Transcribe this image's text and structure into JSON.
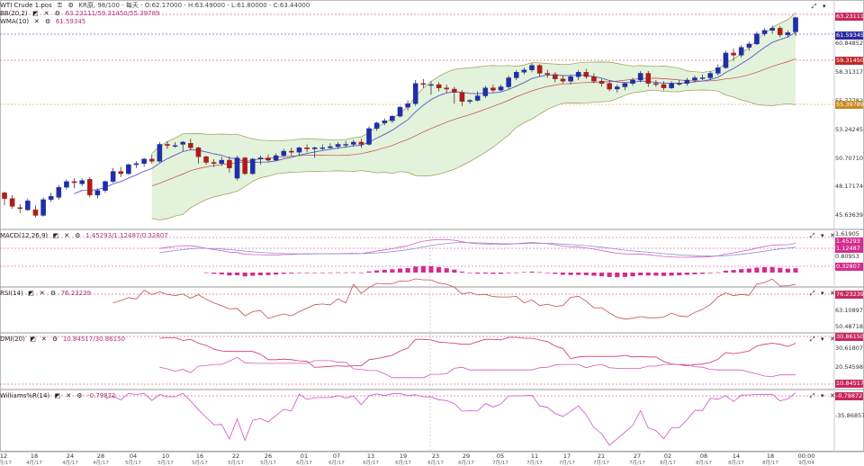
{
  "app": {
    "title": "WTI Crude 1.pos"
  },
  "header": {
    "main_info": "KR原, 98/100 - 每天 - O:62.17000 - H:63.49000 - L:61.80000 - C:63.44000",
    "bb_label": "BB(20,2)",
    "bb_values": "63.23111/59.31450/55.39789",
    "wma_label": "WMA(10)",
    "wma_value": "61.59345"
  },
  "price_axis": {
    "labels": [
      "60.84852",
      "58.31317",
      "55.77782",
      "53.24245",
      "50.70710",
      "48.17174",
      "45.63639"
    ],
    "tags": {
      "close": "63.23111",
      "wma": "61.59345",
      "bb_mid": "59.31450",
      "bb_low": "55.39789"
    }
  },
  "macd": {
    "label": "MACD(12,26,9)",
    "values": "1.45293/1.12487/0.32807",
    "axis_labels": [
      "1.61905",
      "0.80953"
    ],
    "tags": [
      "1.45293",
      "1.12487",
      "0.32807"
    ]
  },
  "rsi": {
    "label": "RSI(14)",
    "value": "76.23239",
    "axis_labels": [
      "63.10897",
      "50.48718"
    ],
    "tags": [
      "76.23239"
    ]
  },
  "dmi": {
    "label": "DMI(20)",
    "values": "10.84517/30.86150",
    "axis_labels": [
      "30.61807",
      "20.54598"
    ],
    "tags": [
      "30.86150",
      "10.84517"
    ]
  },
  "williams": {
    "label": "Williams%R(14)",
    "value": "-0.79872",
    "axis_labels": [
      "-35.86857"
    ],
    "tags": [
      "-0.79872"
    ]
  },
  "x_axis": {
    "ticks": [
      "12",
      "18",
      "24",
      "28",
      "04",
      "10",
      "16",
      "22",
      "26",
      "01",
      "07",
      "13",
      "19",
      "23",
      "29",
      "05",
      "11",
      "17",
      "21",
      "27",
      "02",
      "08",
      "14",
      "18",
      "00:00"
    ],
    "months": [
      "4月/17",
      "4月/17",
      "4月/17",
      "4月/17",
      "5月/17",
      "5月/17",
      "5月/17",
      "5月/17",
      "5月/17",
      "6月/17",
      "6月/17",
      "6月/17",
      "6月/17",
      "6月/17",
      "6月/17",
      "7月/17",
      "7月/17",
      "7月/17",
      "7月/17",
      "7月/17",
      "8月/17",
      "8月/17",
      "8月/17",
      "8月/17",
      "9月/04"
    ]
  },
  "colors": {
    "up": "#1f2fa8",
    "down": "#b01c1c",
    "band_fill": "#e3f2da",
    "band_line": "#9a9a55",
    "wma": "#5a5ac8",
    "mid": "#c04848",
    "pink": "#d42c8e"
  },
  "chart_data": {
    "type": "candlestick",
    "ylim": [
      44.9,
      64.2
    ],
    "candles": [
      [
        47.9,
        47.4,
        48.0,
        46.8
      ],
      [
        47.4,
        46.7,
        47.7,
        46.5
      ],
      [
        46.6,
        46.5,
        46.9,
        46.1
      ],
      [
        46.4,
        47.2,
        47.4,
        46.3
      ],
      [
        46.4,
        45.9,
        46.8,
        45.7
      ],
      [
        45.9,
        47.3,
        47.5,
        45.8
      ],
      [
        47.3,
        47.6,
        47.9,
        47.1
      ],
      [
        47.5,
        48.4,
        48.6,
        47.3
      ],
      [
        48.4,
        48.9,
        49.1,
        48.2
      ],
      [
        48.9,
        48.8,
        49.2,
        48.3
      ],
      [
        48.7,
        49.0,
        49.2,
        48.5
      ],
      [
        49.1,
        47.7,
        49.3,
        47.5
      ],
      [
        47.7,
        48.1,
        48.3,
        47.4
      ],
      [
        48.1,
        48.9,
        49.0,
        47.9
      ],
      [
        48.9,
        49.8,
        50.1,
        48.8
      ],
      [
        49.8,
        49.6,
        50.2,
        49.3
      ],
      [
        49.6,
        50.4,
        50.5,
        49.5
      ],
      [
        50.4,
        50.5,
        50.7,
        50.1
      ],
      [
        50.5,
        50.9,
        51.0,
        50.2
      ],
      [
        50.9,
        50.7,
        51.3,
        50.5
      ],
      [
        50.7,
        52.2,
        52.4,
        50.6
      ],
      [
        52.2,
        52.1,
        52.5,
        51.8
      ],
      [
        52.1,
        52.1,
        52.4,
        51.9
      ],
      [
        52.2,
        52.4,
        52.5,
        51.6
      ],
      [
        52.3,
        51.9,
        52.7,
        51.7
      ],
      [
        51.9,
        51.1,
        52.0,
        50.5
      ],
      [
        51.1,
        50.6,
        51.2,
        50.4
      ],
      [
        50.6,
        50.5,
        50.9,
        50.2
      ],
      [
        50.5,
        50.8,
        51.1,
        50.3
      ],
      [
        50.8,
        50.1,
        51.1,
        49.7
      ],
      [
        49.2,
        51.0,
        51.2,
        49.0
      ],
      [
        51.0,
        49.6,
        51.1,
        49.5
      ],
      [
        49.6,
        50.9,
        51.0,
        49.5
      ],
      [
        50.9,
        51.0,
        51.2,
        50.4
      ],
      [
        51.0,
        50.8,
        51.3,
        50.6
      ],
      [
        50.8,
        51.2,
        51.4,
        50.7
      ],
      [
        51.2,
        51.6,
        51.8,
        51.1
      ],
      [
        51.6,
        51.5,
        51.9,
        51.2
      ],
      [
        51.5,
        51.9,
        52.0,
        51.2
      ],
      [
        51.9,
        51.8,
        52.2,
        51.5
      ],
      [
        51.8,
        51.9,
        52.0,
        51.0
      ],
      [
        51.9,
        51.9,
        52.2,
        51.7
      ],
      [
        51.9,
        52.0,
        52.3,
        51.8
      ],
      [
        52.0,
        52.2,
        52.4,
        51.8
      ],
      [
        52.2,
        52.2,
        52.5,
        51.9
      ],
      [
        52.2,
        52.4,
        52.6,
        52.0
      ],
      [
        52.4,
        52.2,
        52.7,
        51.9
      ],
      [
        52.2,
        53.6,
        53.8,
        52.1
      ],
      [
        53.6,
        54.1,
        54.2,
        53.4
      ],
      [
        54.1,
        54.3,
        54.5,
        53.9
      ],
      [
        54.3,
        54.7,
        54.8,
        54.1
      ],
      [
        54.7,
        55.5,
        55.6,
        54.6
      ],
      [
        55.5,
        55.8,
        56.1,
        55.2
      ],
      [
        55.8,
        57.6,
        57.9,
        55.6
      ],
      [
        57.6,
        57.5,
        58.0,
        57.2
      ],
      [
        57.5,
        57.5,
        57.8,
        56.6
      ],
      [
        57.5,
        57.2,
        57.7,
        56.9
      ],
      [
        57.2,
        57.1,
        57.5,
        56.8
      ],
      [
        57.1,
        56.8,
        57.3,
        55.8
      ],
      [
        56.8,
        56.0,
        57.0,
        55.6
      ],
      [
        56.0,
        56.1,
        56.2,
        55.8
      ],
      [
        56.1,
        56.5,
        56.9,
        56.0
      ],
      [
        56.5,
        57.2,
        57.4,
        56.3
      ],
      [
        57.2,
        57.0,
        57.5,
        56.8
      ],
      [
        57.0,
        57.3,
        57.5,
        56.9
      ],
      [
        57.3,
        58.1,
        58.3,
        57.1
      ],
      [
        58.1,
        58.6,
        58.8,
        57.9
      ],
      [
        58.6,
        58.8,
        59.0,
        58.4
      ],
      [
        58.8,
        59.2,
        59.4,
        58.6
      ],
      [
        59.2,
        58.5,
        59.3,
        58.2
      ],
      [
        58.5,
        58.4,
        58.8,
        58.1
      ],
      [
        58.4,
        58.0,
        58.6,
        57.7
      ],
      [
        58.0,
        57.8,
        58.3,
        57.6
      ],
      [
        57.8,
        58.2,
        58.4,
        57.5
      ],
      [
        58.2,
        58.6,
        58.8,
        57.9
      ],
      [
        58.6,
        58.2,
        58.9,
        58.0
      ],
      [
        58.2,
        57.8,
        58.5,
        57.6
      ],
      [
        57.8,
        57.6,
        58.0,
        57.3
      ],
      [
        57.6,
        57.1,
        57.8,
        56.9
      ],
      [
        57.1,
        57.3,
        57.5,
        56.8
      ],
      [
        57.3,
        57.6,
        57.7,
        57.0
      ],
      [
        57.6,
        57.9,
        58.1,
        57.4
      ],
      [
        57.9,
        58.5,
        58.7,
        57.7
      ],
      [
        58.5,
        57.6,
        58.7,
        57.3
      ],
      [
        57.6,
        57.5,
        57.9,
        57.3
      ],
      [
        57.5,
        57.2,
        57.8,
        57.0
      ],
      [
        57.2,
        57.6,
        57.8,
        57.1
      ],
      [
        57.6,
        57.6,
        57.9,
        57.4
      ],
      [
        57.6,
        57.9,
        58.1,
        57.4
      ],
      [
        57.9,
        58.1,
        58.3,
        57.7
      ],
      [
        58.1,
        58.1,
        58.4,
        57.9
      ],
      [
        58.1,
        58.5,
        58.7,
        57.9
      ],
      [
        58.5,
        59.0,
        59.3,
        58.3
      ],
      [
        59.0,
        60.3,
        60.5,
        58.9
      ],
      [
        60.3,
        60.1,
        60.7,
        59.6
      ],
      [
        60.1,
        60.8,
        61.0,
        59.9
      ],
      [
        60.8,
        61.1,
        61.3,
        60.5
      ],
      [
        61.1,
        62.0,
        62.2,
        61.0
      ],
      [
        62.0,
        62.3,
        62.5,
        61.8
      ],
      [
        62.3,
        62.5,
        62.7,
        62.0
      ],
      [
        62.5,
        61.9,
        62.7,
        61.7
      ],
      [
        61.9,
        62.1,
        62.3,
        61.7
      ],
      [
        62.17,
        63.44,
        63.49,
        61.8
      ]
    ]
  }
}
